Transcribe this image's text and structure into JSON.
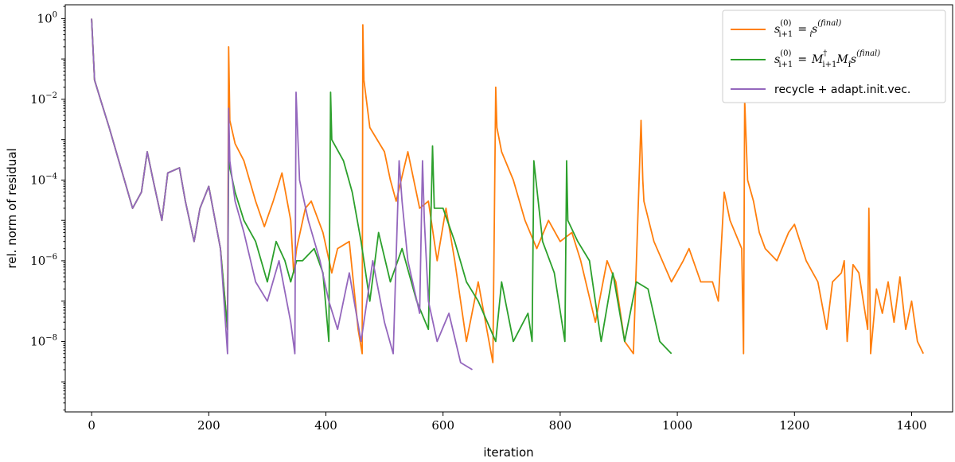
{
  "chart_data": {
    "type": "line",
    "title": "",
    "xlabel": "iteration",
    "ylabel": "rel. norm of residual",
    "xscale": "linear",
    "yscale": "log",
    "xlim": [
      -45,
      1470
    ],
    "ylim": [
      1.8e-10,
      2.2
    ],
    "xticks": [
      0,
      200,
      400,
      600,
      800,
      1000,
      1200,
      1400
    ],
    "xtick_labels": [
      "0",
      "200",
      "400",
      "600",
      "800",
      "1000",
      "1200",
      "1400"
    ],
    "yticks": [
      1,
      0.01,
      0.0001,
      1e-06,
      1e-08
    ],
    "ytick_labels": [
      {
        "base": "10",
        "exp": "0"
      },
      {
        "base": "10",
        "exp": "−2"
      },
      {
        "base": "10",
        "exp": "−4"
      },
      {
        "base": "10",
        "exp": "−6"
      },
      {
        "base": "10",
        "exp": "−8"
      }
    ],
    "grid": false,
    "legend_position": "top-right",
    "series": [
      {
        "name": "s_{i+1}^{(0)} = s_i^{(final)}",
        "color": "#ff7f0e",
        "x": [
          0,
          5,
          15,
          30,
          50,
          70,
          85,
          95,
          105,
          120,
          130,
          150,
          160,
          175,
          185,
          200,
          220,
          232,
          234,
          236,
          245,
          260,
          280,
          295,
          310,
          325,
          340,
          345,
          350,
          365,
          375,
          395,
          410,
          420,
          440,
          455,
          462,
          463,
          465,
          475,
          500,
          510,
          520,
          540,
          560,
          575,
          590,
          605,
          620,
          640,
          660,
          685,
          690,
          692,
          700,
          720,
          740,
          760,
          780,
          800,
          820,
          835,
          860,
          880,
          895,
          910,
          925,
          938,
          941,
          943,
          960,
          990,
          1010,
          1020,
          1040,
          1060,
          1070,
          1080,
          1090,
          1110,
          1113,
          1115,
          1120,
          1130,
          1140,
          1150,
          1170,
          1190,
          1200,
          1220,
          1240,
          1255,
          1265,
          1280,
          1285,
          1290,
          1300,
          1310,
          1325,
          1327,
          1330,
          1340,
          1350,
          1360,
          1370,
          1380,
          1390,
          1400,
          1410,
          1420
        ],
        "y": [
          1,
          0.03,
          0.01,
          0.002,
          0.0002,
          2e-05,
          5e-05,
          0.0005,
          0.0001,
          1e-05,
          0.00015,
          0.0002,
          3e-05,
          3e-06,
          2e-05,
          7e-05,
          2e-06,
          2e-08,
          0.2,
          0.003,
          0.0008,
          0.0003,
          3e-05,
          7e-06,
          3e-05,
          0.00015,
          1e-05,
          5e-07,
          2e-06,
          2e-05,
          3e-05,
          5e-06,
          5e-07,
          2e-06,
          3e-06,
          2e-08,
          5e-09,
          0.7,
          0.03,
          0.002,
          0.0005,
          0.0001,
          3e-05,
          0.0005,
          2e-05,
          3e-05,
          1e-06,
          2e-05,
          1e-06,
          1e-08,
          3e-07,
          3e-09,
          0.02,
          0.002,
          0.0005,
          0.0001,
          1e-05,
          2e-06,
          1e-05,
          3e-06,
          5e-06,
          1e-06,
          3e-08,
          1e-06,
          3e-07,
          1e-08,
          5e-09,
          0.003,
          0.0001,
          3e-05,
          3e-06,
          3e-07,
          1e-06,
          2e-06,
          3e-07,
          3e-07,
          1e-07,
          5e-05,
          1e-05,
          2e-06,
          5e-09,
          0.01,
          0.0001,
          3e-05,
          5e-06,
          2e-06,
          1e-06,
          5e-06,
          8e-06,
          1e-06,
          3e-07,
          2e-08,
          3e-07,
          5e-07,
          1e-06,
          1e-08,
          8e-07,
          5e-07,
          2e-08,
          2e-05,
          5e-09,
          2e-07,
          5e-08,
          3e-07,
          3e-08,
          4e-07,
          2e-08,
          1e-07,
          1e-08,
          5e-09
        ]
      },
      {
        "name": "s_{i+1}^{(0)} = M_{i+1}^† M_i s_i^{(final)}",
        "color": "#2ca02c",
        "x": [
          0,
          5,
          15,
          30,
          50,
          70,
          85,
          95,
          105,
          120,
          130,
          150,
          160,
          175,
          185,
          200,
          220,
          232,
          234,
          236,
          245,
          260,
          280,
          300,
          315,
          330,
          340,
          350,
          360,
          380,
          395,
          405,
          408,
          410,
          430,
          445,
          460,
          475,
          490,
          510,
          530,
          555,
          575,
          582,
          585,
          600,
          620,
          640,
          660,
          690,
          700,
          720,
          745,
          752,
          755,
          770,
          790,
          808,
          811,
          813,
          830,
          850,
          870,
          890,
          910,
          930,
          950,
          970,
          990
        ],
        "y": [
          1,
          0.03,
          0.01,
          0.002,
          0.0002,
          2e-05,
          5e-05,
          0.0005,
          0.0001,
          1e-05,
          0.00015,
          0.0002,
          3e-05,
          3e-06,
          2e-05,
          7e-05,
          2e-06,
          2e-08,
          0.0003,
          0.0002,
          5e-05,
          1e-05,
          3e-06,
          3e-07,
          3e-06,
          1e-06,
          3e-07,
          1e-06,
          1e-06,
          2e-06,
          5e-07,
          1e-08,
          0.015,
          0.001,
          0.0003,
          5e-05,
          3e-06,
          1e-07,
          5e-06,
          3e-07,
          2e-06,
          1e-07,
          2e-08,
          0.0007,
          2e-05,
          2e-05,
          3e-06,
          3e-07,
          1e-07,
          1e-08,
          3e-07,
          1e-08,
          5e-08,
          1e-08,
          0.0003,
          3e-06,
          5e-07,
          1e-08,
          0.0003,
          1e-05,
          3e-06,
          1e-06,
          1e-08,
          5e-07,
          1e-08,
          3e-07,
          2e-07,
          1e-08,
          5e-09
        ]
      },
      {
        "name": "recycle + adapt.init.vec.",
        "color": "#9467bd",
        "x": [
          0,
          5,
          15,
          30,
          50,
          70,
          85,
          95,
          105,
          120,
          130,
          150,
          160,
          175,
          185,
          200,
          220,
          232,
          234,
          236,
          245,
          260,
          280,
          300,
          320,
          340,
          347,
          349,
          355,
          370,
          390,
          405,
          420,
          440,
          460,
          480,
          500,
          515,
          525,
          530,
          540,
          560,
          565,
          568,
          575,
          590,
          610,
          630,
          650
        ],
        "y": [
          1,
          0.03,
          0.01,
          0.002,
          0.0002,
          2e-05,
          5e-05,
          0.0005,
          0.0001,
          1e-05,
          0.00015,
          0.0002,
          3e-05,
          3e-06,
          2e-05,
          7e-05,
          2e-06,
          5e-09,
          0.006,
          0.0003,
          3e-05,
          5e-06,
          3e-07,
          1e-07,
          1e-06,
          3e-08,
          5e-09,
          0.015,
          0.0001,
          1e-05,
          1e-06,
          1e-07,
          2e-08,
          5e-07,
          1e-08,
          1e-06,
          3e-08,
          5e-09,
          0.0003,
          3e-05,
          1e-06,
          5e-08,
          0.0003,
          1e-05,
          1e-07,
          1e-08,
          5e-08,
          3e-09,
          2e-09
        ]
      }
    ]
  },
  "legend": {
    "entries": [
      {
        "color": "#ff7f0e",
        "lhs_main": "s",
        "lhs_sub": "i+1",
        "lhs_sup": "(0)",
        "eq": "=",
        "rhs_main": "s",
        "rhs_sub": "i",
        "rhs_sup": "(final)"
      },
      {
        "color": "#2ca02c",
        "lhs_main": "s",
        "lhs_sub": "i+1",
        "lhs_sup": "(0)",
        "eq": "=",
        "rhs_M1": "M",
        "rhs_M1_sub": "i+1",
        "rhs_M1_sup": "†",
        "rhs_M2": "M",
        "rhs_M2_sub": "i",
        "rhs_main": "s",
        "rhs_sub": "i",
        "rhs_sup": "(final)"
      },
      {
        "color": "#9467bd",
        "label": "recycle + adapt.init.vec."
      }
    ]
  }
}
